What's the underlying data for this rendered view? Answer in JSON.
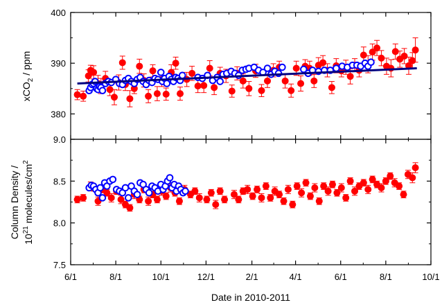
{
  "chart_data": [
    {
      "type": "scatter",
      "panel": "top",
      "ylabel": {
        "text": "xCO",
        "sub": "2",
        "suffix": " / ppm"
      },
      "ylim": [
        375,
        400
      ],
      "yticks": [
        380,
        390,
        400
      ],
      "yticklabels": [
        "380",
        "390",
        "400"
      ],
      "grid": false,
      "series": [
        {
          "marker": "filled-circle-with-errorbar",
          "color": "#ff0000",
          "x": [
            "2010-06-10",
            "2010-06-18",
            "2010-06-25",
            "2010-06-28",
            "2010-07-02",
            "2010-07-08",
            "2010-07-12",
            "2010-07-18",
            "2010-07-24",
            "2010-07-30",
            "2010-08-05",
            "2010-08-10",
            "2010-08-14",
            "2010-08-20",
            "2010-08-26",
            "2010-09-02",
            "2010-09-08",
            "2010-09-14",
            "2010-09-20",
            "2010-09-26",
            "2010-10-02",
            "2010-10-08",
            "2010-10-15",
            "2010-10-21",
            "2010-10-27",
            "2010-11-05",
            "2010-11-12",
            "2010-11-20",
            "2010-11-28",
            "2010-12-06",
            "2010-12-12",
            "2010-12-20",
            "2010-12-28",
            "2011-01-05",
            "2011-01-12",
            "2011-01-20",
            "2011-01-28",
            "2011-02-06",
            "2011-02-14",
            "2011-02-22",
            "2011-03-02",
            "2011-03-10",
            "2011-03-18",
            "2011-03-26",
            "2011-04-02",
            "2011-04-08",
            "2011-04-14",
            "2011-04-20",
            "2011-04-26",
            "2011-05-02",
            "2011-05-08",
            "2011-05-14",
            "2011-05-20",
            "2011-05-26",
            "2011-06-02",
            "2011-06-08",
            "2011-06-14",
            "2011-06-20",
            "2011-06-26",
            "2011-07-02",
            "2011-07-08",
            "2011-07-14",
            "2011-07-20",
            "2011-07-26",
            "2011-08-02",
            "2011-08-08",
            "2011-08-14",
            "2011-08-20",
            "2011-08-26",
            "2011-09-01",
            "2011-09-06",
            "2011-09-10"
          ],
          "y": [
            383.8,
            383.5,
            387.5,
            388.6,
            388.2,
            386.0,
            385.5,
            387.0,
            384.8,
            383.3,
            386.2,
            390.1,
            385.8,
            383.0,
            385.0,
            389.4,
            386.6,
            383.5,
            388.5,
            384.0,
            386.8,
            383.9,
            388.2,
            390.0,
            384.0,
            386.8,
            388.0,
            385.5,
            385.6,
            389.0,
            385.2,
            388.0,
            387.5,
            384.5,
            388.0,
            386.5,
            385.0,
            388.5,
            384.6,
            386.5,
            388.6,
            389.2,
            386.5,
            384.6,
            389.0,
            386.0,
            389.4,
            389.0,
            386.5,
            389.6,
            390.1,
            388.6,
            385.2,
            389.5,
            388.5,
            389.2,
            387.4,
            389.6,
            388.6,
            391.6,
            389.8,
            392.2,
            393.0,
            391.0,
            389.4,
            389.0,
            392.3,
            390.8,
            391.4,
            389.5,
            390.5,
            392.6
          ],
          "err": [
            1.0,
            1.0,
            1.2,
            1.0,
            1.3,
            1.6,
            1.5,
            1.4,
            1.2,
            1.5,
            1.5,
            1.3,
            1.2,
            1.6,
            1.0,
            1.4,
            1.3,
            1.3,
            1.2,
            1.4,
            1.4,
            1.2,
            1.5,
            1.2,
            1.3,
            1.4,
            1.4,
            1.3,
            1.4,
            1.5,
            1.4,
            1.2,
            1.3,
            1.2,
            1.3,
            1.4,
            1.4,
            1.3,
            1.2,
            1.3,
            1.3,
            1.2,
            1.4,
            1.3,
            1.4,
            1.5,
            1.3,
            1.4,
            1.3,
            1.5,
            1.4,
            1.3,
            1.2,
            1.4,
            1.2,
            1.4,
            1.5,
            1.3,
            1.3,
            1.6,
            1.7,
            1.6,
            1.5,
            1.5,
            1.6,
            1.7,
            1.5,
            1.6,
            1.5,
            1.7,
            1.6,
            2.4
          ]
        },
        {
          "marker": "open-circle",
          "color": "#0000ff",
          "x": [
            "2010-06-26",
            "2010-06-28",
            "2010-06-30",
            "2010-07-02",
            "2010-07-04",
            "2010-07-06",
            "2010-07-08",
            "2010-07-10",
            "2010-07-12",
            "2010-07-14",
            "2010-07-18",
            "2010-07-22",
            "2010-07-26",
            "2010-08-01",
            "2010-08-06",
            "2010-08-10",
            "2010-08-14",
            "2010-08-18",
            "2010-08-22",
            "2010-08-26",
            "2010-08-30",
            "2010-09-03",
            "2010-09-07",
            "2010-09-11",
            "2010-09-15",
            "2010-09-19",
            "2010-09-23",
            "2010-09-27",
            "2010-10-01",
            "2010-10-03",
            "2010-10-06",
            "2010-10-09",
            "2010-10-12",
            "2010-10-15",
            "2010-10-18",
            "2010-10-21",
            "2010-10-24",
            "2010-10-27",
            "2010-10-30",
            "2010-11-20",
            "2010-11-26",
            "2010-12-03",
            "2010-12-10",
            "2010-12-16",
            "2010-12-20",
            "2010-12-24",
            "2010-12-29",
            "2011-01-04",
            "2011-01-09",
            "2011-01-14",
            "2011-01-19",
            "2011-01-24",
            "2011-01-28",
            "2011-02-04",
            "2011-02-10",
            "2011-02-16",
            "2011-02-22",
            "2011-02-27",
            "2011-03-04",
            "2011-03-09",
            "2011-03-14",
            "2011-04-12",
            "2011-04-18",
            "2011-04-24",
            "2011-05-02",
            "2011-05-10",
            "2011-05-18",
            "2011-05-26",
            "2011-06-03",
            "2011-06-10",
            "2011-06-17",
            "2011-06-23",
            "2011-06-28",
            "2011-07-04",
            "2011-07-08",
            "2011-07-12"
          ],
          "y": [
            384.6,
            385.2,
            385.8,
            386.0,
            386.4,
            385.0,
            384.8,
            385.4,
            385.2,
            384.6,
            386.0,
            386.4,
            386.2,
            386.8,
            386.0,
            385.8,
            386.6,
            387.0,
            386.4,
            386.0,
            386.8,
            387.2,
            386.4,
            385.8,
            386.6,
            386.2,
            387.0,
            386.8,
            388.2,
            386.4,
            387.0,
            386.0,
            387.4,
            386.8,
            386.4,
            387.2,
            387.0,
            386.6,
            387.6,
            387.2,
            387.0,
            387.6,
            386.6,
            387.2,
            386.4,
            387.8,
            388.0,
            388.4,
            388.0,
            387.6,
            388.6,
            388.8,
            389.0,
            389.2,
            388.6,
            388.2,
            389.0,
            387.8,
            388.4,
            388.0,
            389.2,
            388.8,
            388.0,
            388.6,
            388.4,
            388.6,
            388.6,
            389.0,
            389.4,
            389.2,
            389.6,
            389.6,
            389.4,
            390.0,
            389.4,
            390.2
          ]
        },
        {
          "marker": "line",
          "color": "#000080",
          "x": [
            "2010-06-10",
            "2011-09-12"
          ],
          "y": [
            386.0,
            389.0
          ]
        }
      ]
    },
    {
      "type": "scatter",
      "panel": "bottom",
      "ylabel": {
        "line1": "Column Density /",
        "line2_base": "10",
        "line2_sup": "21",
        "line2_mid": " molecules/cm",
        "line2_sup2": "2"
      },
      "ylim": [
        7.5,
        9.0
      ],
      "yticks": [
        7.5,
        8.0,
        8.5,
        9.0
      ],
      "yticklabels": [
        "7.5",
        "8.0",
        "8.5",
        "9.0"
      ],
      "xlabel": "Date in 2010-2011",
      "xticks": [
        "2010-06-01",
        "2010-08-01",
        "2010-10-01",
        "2010-12-01",
        "2011-02-01",
        "2011-04-01",
        "2011-06-01",
        "2011-08-01",
        "2011-10-01"
      ],
      "xticklabels": [
        "6/1",
        "8/1",
        "10/1",
        "12/1",
        "2/1",
        "4/1",
        "6/1",
        "8/1",
        "10/1"
      ],
      "grid": false,
      "series": [
        {
          "marker": "filled-circle-with-errorbar",
          "color": "#ff0000",
          "x": [
            "2010-06-10",
            "2010-06-18",
            "2010-06-28",
            "2010-07-02",
            "2010-07-08",
            "2010-07-14",
            "2010-07-20",
            "2010-07-26",
            "2010-08-02",
            "2010-08-08",
            "2010-08-14",
            "2010-08-20",
            "2010-08-26",
            "2010-09-02",
            "2010-09-08",
            "2010-09-14",
            "2010-09-20",
            "2010-09-26",
            "2010-10-02",
            "2010-10-08",
            "2010-10-14",
            "2010-10-20",
            "2010-10-26",
            "2010-11-02",
            "2010-11-10",
            "2010-11-16",
            "2010-11-22",
            "2010-12-02",
            "2010-12-08",
            "2010-12-14",
            "2010-12-20",
            "2010-12-26",
            "2011-01-08",
            "2011-01-14",
            "2011-01-20",
            "2011-01-26",
            "2011-02-02",
            "2011-02-08",
            "2011-02-14",
            "2011-02-20",
            "2011-02-26",
            "2011-03-04",
            "2011-03-10",
            "2011-03-16",
            "2011-03-22",
            "2011-03-28",
            "2011-04-03",
            "2011-04-09",
            "2011-04-15",
            "2011-04-21",
            "2011-04-27",
            "2011-05-03",
            "2011-05-09",
            "2011-05-15",
            "2011-05-21",
            "2011-05-27",
            "2011-06-02",
            "2011-06-08",
            "2011-06-14",
            "2011-06-20",
            "2011-06-26",
            "2011-07-02",
            "2011-07-08",
            "2011-07-14",
            "2011-07-20",
            "2011-07-26",
            "2011-08-01",
            "2011-08-07",
            "2011-08-13",
            "2011-08-19",
            "2011-08-25",
            "2011-08-31",
            "2011-09-06",
            "2011-09-10"
          ],
          "y": [
            8.28,
            8.3,
            8.44,
            8.42,
            8.26,
            8.4,
            8.36,
            8.3,
            8.38,
            8.28,
            8.22,
            8.18,
            8.34,
            8.28,
            8.4,
            8.26,
            8.34,
            8.28,
            8.38,
            8.32,
            8.42,
            8.36,
            8.26,
            8.4,
            8.34,
            8.38,
            8.3,
            8.28,
            8.36,
            8.22,
            8.38,
            8.28,
            8.34,
            8.28,
            8.38,
            8.4,
            8.32,
            8.4,
            8.3,
            8.44,
            8.3,
            8.38,
            8.34,
            8.26,
            8.4,
            8.22,
            8.44,
            8.36,
            8.48,
            8.32,
            8.42,
            8.26,
            8.44,
            8.38,
            8.46,
            8.36,
            8.42,
            8.3,
            8.5,
            8.38,
            8.44,
            8.48,
            8.4,
            8.52,
            8.46,
            8.42,
            8.5,
            8.56,
            8.48,
            8.44,
            8.34,
            8.58,
            8.54,
            8.66
          ],
          "err": [
            0.04,
            0.04,
            0.05,
            0.04,
            0.05,
            0.04,
            0.04,
            0.05,
            0.04,
            0.05,
            0.04,
            0.04,
            0.05,
            0.04,
            0.04,
            0.05,
            0.04,
            0.04,
            0.05,
            0.04,
            0.05,
            0.04,
            0.04,
            0.05,
            0.04,
            0.04,
            0.05,
            0.04,
            0.04,
            0.05,
            0.04,
            0.04,
            0.05,
            0.04,
            0.04,
            0.05,
            0.04,
            0.04,
            0.05,
            0.04,
            0.04,
            0.05,
            0.04,
            0.04,
            0.05,
            0.04,
            0.04,
            0.05,
            0.04,
            0.04,
            0.05,
            0.04,
            0.04,
            0.05,
            0.04,
            0.04,
            0.05,
            0.04,
            0.04,
            0.05,
            0.04,
            0.04,
            0.05,
            0.04,
            0.04,
            0.05,
            0.04,
            0.04,
            0.05,
            0.04,
            0.04,
            0.05,
            0.06,
            0.06
          ]
        },
        {
          "marker": "open-circle",
          "color": "#0000ff",
          "x": [
            "2010-06-26",
            "2010-06-29",
            "2010-07-02",
            "2010-07-05",
            "2010-07-08",
            "2010-07-11",
            "2010-07-14",
            "2010-07-17",
            "2010-07-20",
            "2010-07-24",
            "2010-07-28",
            "2010-08-02",
            "2010-08-06",
            "2010-08-10",
            "2010-08-14",
            "2010-08-18",
            "2010-08-22",
            "2010-08-26",
            "2010-08-30",
            "2010-09-03",
            "2010-09-07",
            "2010-09-11",
            "2010-09-15",
            "2010-09-19",
            "2010-09-23",
            "2010-09-27",
            "2010-10-01",
            "2010-10-04",
            "2010-10-07",
            "2010-10-10",
            "2010-10-13",
            "2010-10-16",
            "2010-10-19",
            "2010-10-22",
            "2010-10-25",
            "2010-10-28",
            "2010-10-31",
            "2010-11-03"
          ],
          "y": [
            8.42,
            8.45,
            8.44,
            8.4,
            8.36,
            8.42,
            8.3,
            8.48,
            8.44,
            8.5,
            8.52,
            8.4,
            8.38,
            8.36,
            8.42,
            8.3,
            8.44,
            8.38,
            8.34,
            8.48,
            8.46,
            8.4,
            8.36,
            8.44,
            8.42,
            8.38,
            8.46,
            8.4,
            8.44,
            8.5,
            8.54,
            8.42,
            8.46,
            8.38,
            8.44,
            8.4,
            8.36,
            8.38
          ]
        }
      ]
    }
  ]
}
